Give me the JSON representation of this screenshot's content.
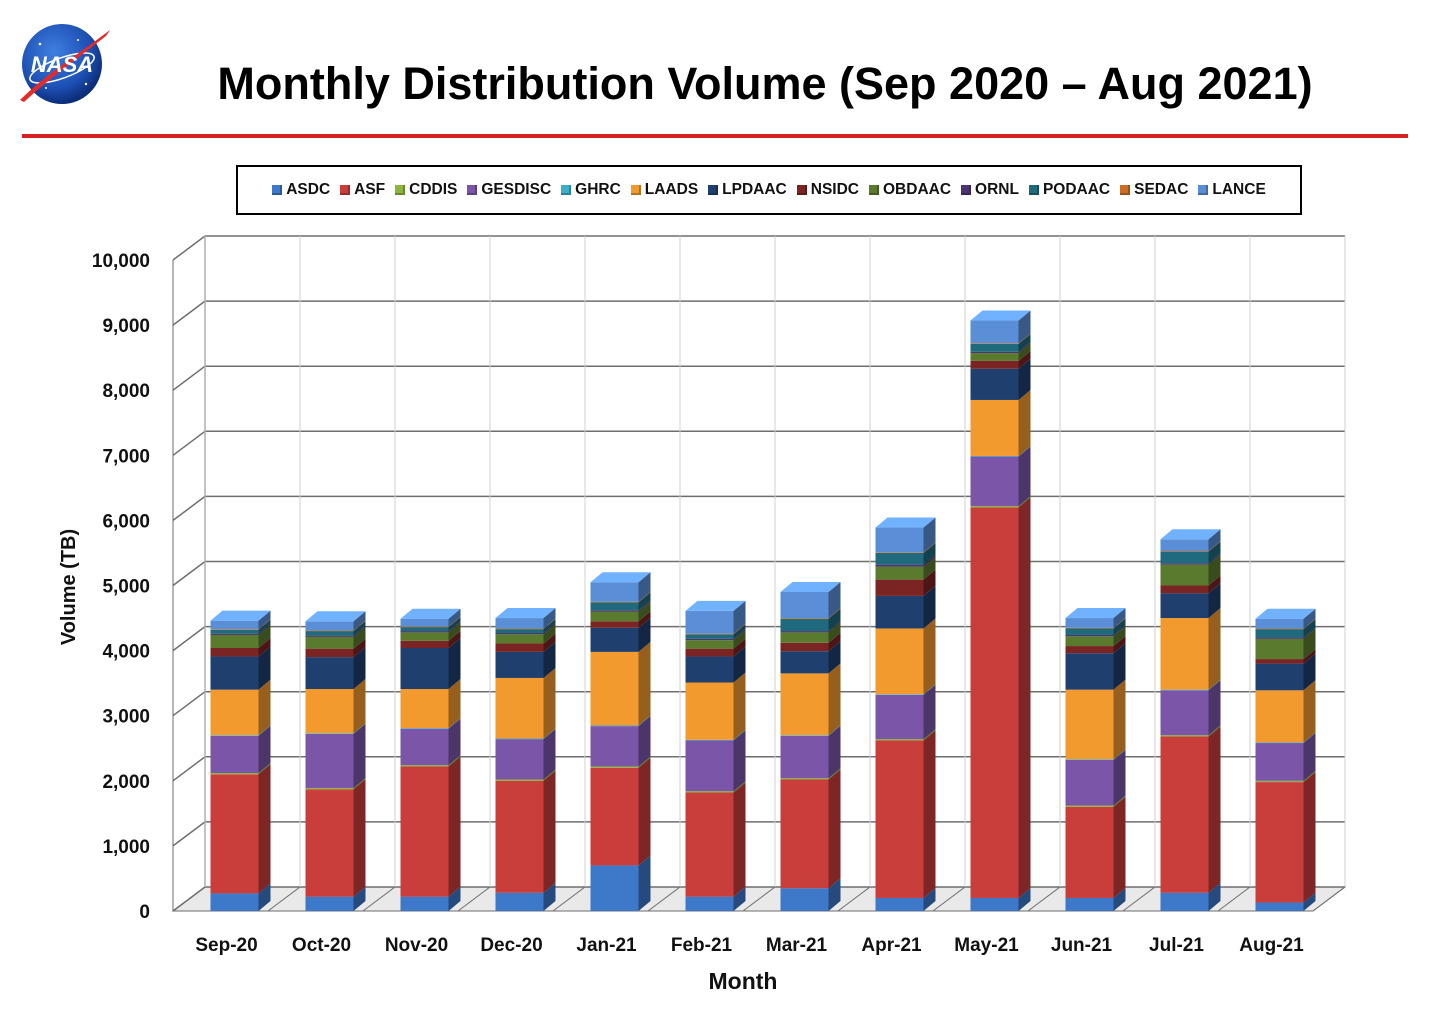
{
  "header": {
    "title": "Monthly Distribution Volume (Sep 2020 – Aug 2021)",
    "logo_text": "NASA"
  },
  "colors": {
    "rule": "#d81e1e",
    "grid": "#6e6e6e"
  },
  "chart_data": {
    "type": "bar",
    "stacked": true,
    "categories": [
      "Sep-20",
      "Oct-20",
      "Nov-20",
      "Dec-20",
      "Jan-21",
      "Feb-21",
      "Mar-21",
      "Apr-21",
      "May-21",
      "Jun-21",
      "Jul-21",
      "Aug-21"
    ],
    "xlabel": "Month",
    "ylabel": "Volume (TB)",
    "ylim": [
      0,
      10000
    ],
    "yticks": [
      0,
      1000,
      2000,
      3000,
      4000,
      5000,
      6000,
      7000,
      8000,
      9000,
      10000
    ],
    "ytick_labels": [
      "0",
      "1,000",
      "2,000",
      "3,000",
      "4,000",
      "5,000",
      "6,000",
      "7,000",
      "8,000",
      "9,000",
      "10,000"
    ],
    "grid": true,
    "legend_position": "top",
    "series": [
      {
        "name": "ASDC",
        "color": "#3d78c9",
        "values": [
          270,
          220,
          220,
          280,
          700,
          220,
          350,
          200,
          200,
          200,
          280,
          130
        ]
      },
      {
        "name": "ASF",
        "color": "#c93d3b",
        "values": [
          1830,
          1650,
          2000,
          1720,
          1500,
          1600,
          1670,
          2420,
          6000,
          1400,
          2400,
          1850
        ]
      },
      {
        "name": "CDDIS",
        "color": "#8db43e",
        "values": [
          20,
          20,
          20,
          20,
          20,
          20,
          20,
          20,
          20,
          20,
          20,
          20
        ]
      },
      {
        "name": "GESDISC",
        "color": "#7b55a8",
        "values": [
          570,
          830,
          560,
          620,
          620,
          780,
          650,
          680,
          760,
          700,
          690,
          580
        ]
      },
      {
        "name": "GHRC",
        "color": "#3bb0c9",
        "values": [
          10,
          10,
          10,
          10,
          10,
          10,
          10,
          10,
          10,
          10,
          10,
          10
        ]
      },
      {
        "name": "LAADS",
        "color": "#f29a2e",
        "values": [
          700,
          680,
          600,
          930,
          1130,
          880,
          950,
          1010,
          860,
          1070,
          1100,
          800
        ]
      },
      {
        "name": "LPDAAC",
        "color": "#1f3f6e",
        "values": [
          510,
          490,
          630,
          400,
          370,
          400,
          340,
          500,
          480,
          560,
          380,
          410
        ]
      },
      {
        "name": "NSIDC",
        "color": "#7a2424",
        "values": [
          130,
          130,
          110,
          130,
          100,
          120,
          130,
          250,
          120,
          110,
          120,
          70
        ]
      },
      {
        "name": "OBDAAC",
        "color": "#5a7a2e",
        "values": [
          200,
          180,
          130,
          140,
          150,
          130,
          160,
          200,
          120,
          150,
          320,
          310
        ]
      },
      {
        "name": "ORNL",
        "color": "#4b3472",
        "values": [
          20,
          20,
          20,
          20,
          20,
          20,
          20,
          30,
          20,
          20,
          20,
          20
        ]
      },
      {
        "name": "PODAAC",
        "color": "#1f6b7d",
        "values": [
          60,
          70,
          60,
          60,
          120,
          70,
          190,
          180,
          120,
          100,
          180,
          130
        ]
      },
      {
        "name": "SEDAC",
        "color": "#c96e22",
        "values": [
          10,
          10,
          10,
          10,
          10,
          10,
          10,
          10,
          10,
          10,
          10,
          10
        ]
      },
      {
        "name": "LANCE",
        "color": "#5a8ed6",
        "values": [
          130,
          140,
          120,
          160,
          300,
          350,
          400,
          380,
          350,
          150,
          180,
          150
        ]
      }
    ]
  }
}
